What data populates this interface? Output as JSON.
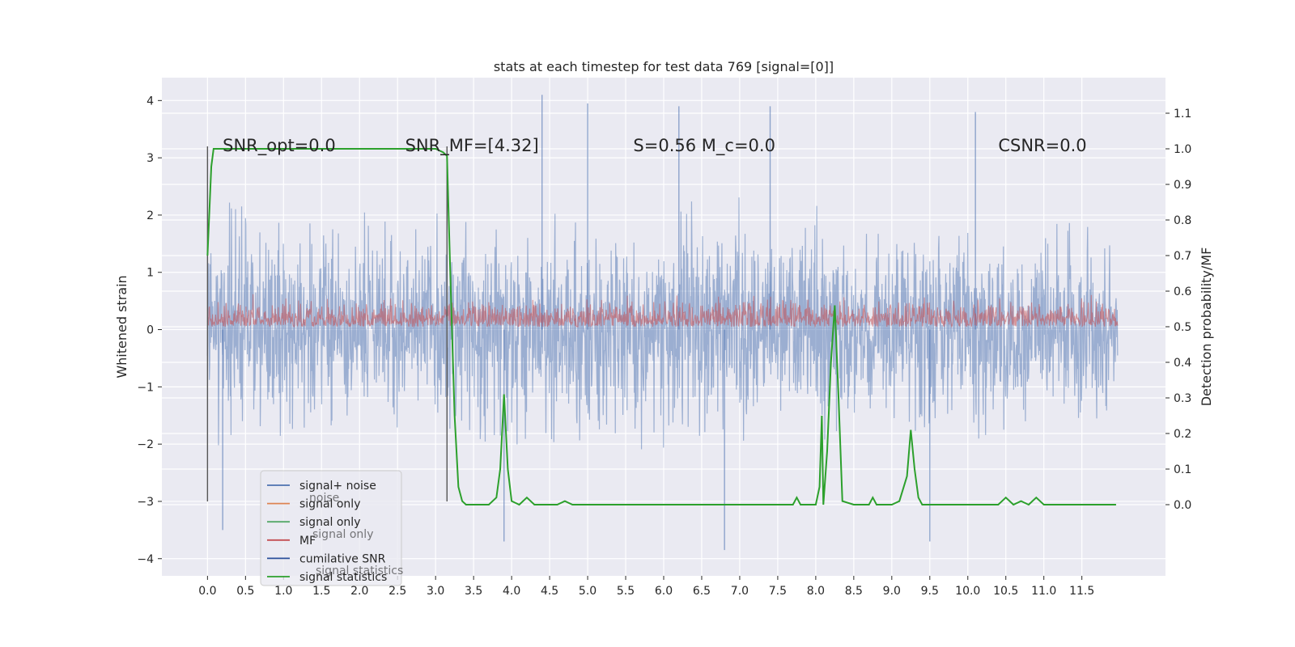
{
  "chart_data": {
    "type": "line",
    "title": "stats at each timestep for test data 769 [signal=[0]]",
    "xlabel": "",
    "ylabel": "Whitened strain",
    "ylabel_right": "Detection probability/MF",
    "xlim": [
      -0.6,
      12.6
    ],
    "ylim": [
      -4.3,
      4.4
    ],
    "ylim_right": [
      -0.2,
      1.2
    ],
    "x_ticks": [
      "0.0",
      "0.5",
      "1.0",
      "1.5",
      "2.0",
      "2.5",
      "3.0",
      "3.5",
      "4.0",
      "4.5",
      "5.0",
      "5.5",
      "6.0",
      "6.5",
      "7.0",
      "7.5",
      "8.0",
      "8.5",
      "9.0",
      "9.5",
      "10.0",
      "10.5",
      "11.0",
      "11.5"
    ],
    "y_ticks": [
      "4",
      "3",
      "2",
      "1",
      "0",
      "−1",
      "−2",
      "−3",
      "−4"
    ],
    "y_ticks_right": [
      "1.1",
      "1.0",
      "0.9",
      "0.8",
      "0.7",
      "0.6",
      "0.5",
      "0.4",
      "0.3",
      "0.2",
      "0.1",
      "0.0"
    ],
    "grid": true,
    "legend_position": "lower-left",
    "background_color": "#eaeaf2",
    "annotations": [
      {
        "text": "SNR_opt=0.0",
        "x": 0.2,
        "y": 3.2
      },
      {
        "text": "SNR_MF=[4.32]",
        "x": 2.6,
        "y": 3.2
      },
      {
        "text": "S=0.56   M_c=0.0",
        "x": 5.6,
        "y": 3.2
      },
      {
        "text": "CSNR=0.0",
        "x": 10.4,
        "y": 3.2
      }
    ],
    "legend": [
      {
        "label": "signal+ noise",
        "color": "#4c72b0"
      },
      {
        "label": "signal only",
        "color": "#dd8452"
      },
      {
        "label": "signal only",
        "color": "#55a868"
      },
      {
        "label": "MF",
        "color": "#c44e52"
      },
      {
        "label": "cumilative SNR",
        "color": "#2a4f9a"
      },
      {
        "label": "signal statistics",
        "color": "#2ca02c"
      }
    ],
    "legend_ghost_text": [
      "noise",
      "signal only",
      "signal statistics"
    ],
    "series": [
      {
        "name": "signal+ noise",
        "axis": "left",
        "color": "#4c72b0",
        "description": "whitened strain noise, approx symmetric, bulk within ±2.5, peaks up to about 4.1 and -3.8",
        "band": [
          -2.5,
          2.5
        ],
        "extreme_peaks": [
          [
            4.4,
            4.1
          ],
          [
            5.0,
            3.95
          ],
          [
            6.2,
            3.9
          ],
          [
            7.4,
            3.9
          ],
          [
            10.1,
            3.8
          ],
          [
            3.9,
            -3.7
          ],
          [
            6.8,
            -3.85
          ],
          [
            9.5,
            -3.7
          ],
          [
            0.2,
            -3.5
          ]
        ]
      },
      {
        "name": "MF",
        "axis": "right",
        "color": "#c44e52",
        "description": "matched filter output, values roughly 0.5 to 0.63",
        "band": [
          0.5,
          0.63
        ]
      },
      {
        "name": "signal statistics",
        "axis": "right",
        "color": "#2ca02c",
        "x": [
          0.0,
          0.05,
          0.08,
          0.15,
          0.5,
          1.0,
          1.5,
          2.0,
          2.5,
          3.0,
          3.1,
          3.15,
          3.2,
          3.25,
          3.3,
          3.35,
          3.4,
          3.5,
          3.6,
          3.7,
          3.8,
          3.85,
          3.9,
          3.95,
          4.0,
          4.1,
          4.2,
          4.3,
          4.4,
          4.5,
          4.6,
          4.7,
          4.8,
          5.0,
          5.5,
          6.0,
          6.5,
          7.0,
          7.5,
          7.7,
          7.75,
          7.8,
          7.9,
          8.0,
          8.05,
          8.08,
          8.1,
          8.15,
          8.2,
          8.25,
          8.3,
          8.35,
          8.5,
          8.7,
          8.75,
          8.8,
          9.0,
          9.1,
          9.2,
          9.25,
          9.3,
          9.35,
          9.4,
          9.5,
          10.0,
          10.4,
          10.5,
          10.6,
          10.7,
          10.8,
          10.9,
          11.0,
          11.1,
          11.5,
          11.95
        ],
        "y": [
          0.7,
          0.95,
          1.0,
          1.0,
          1.0,
          1.0,
          1.0,
          1.0,
          1.0,
          1.0,
          0.99,
          0.98,
          0.6,
          0.25,
          0.05,
          0.01,
          0.0,
          0.0,
          0.0,
          0.0,
          0.02,
          0.1,
          0.31,
          0.1,
          0.01,
          0.0,
          0.02,
          0.0,
          0.0,
          0.0,
          0.0,
          0.01,
          0.0,
          0.0,
          0.0,
          0.0,
          0.0,
          0.0,
          0.0,
          0.0,
          0.02,
          0.0,
          0.0,
          0.0,
          0.05,
          0.25,
          0.0,
          0.15,
          0.4,
          0.56,
          0.3,
          0.01,
          0.0,
          0.0,
          0.02,
          0.0,
          0.0,
          0.01,
          0.08,
          0.21,
          0.1,
          0.02,
          0.0,
          0.0,
          0.0,
          0.0,
          0.02,
          0.0,
          0.01,
          0.0,
          0.02,
          0.0,
          0.0,
          0.0,
          0.0
        ]
      }
    ],
    "vertical_markers": [
      0.0,
      3.15
    ]
  }
}
